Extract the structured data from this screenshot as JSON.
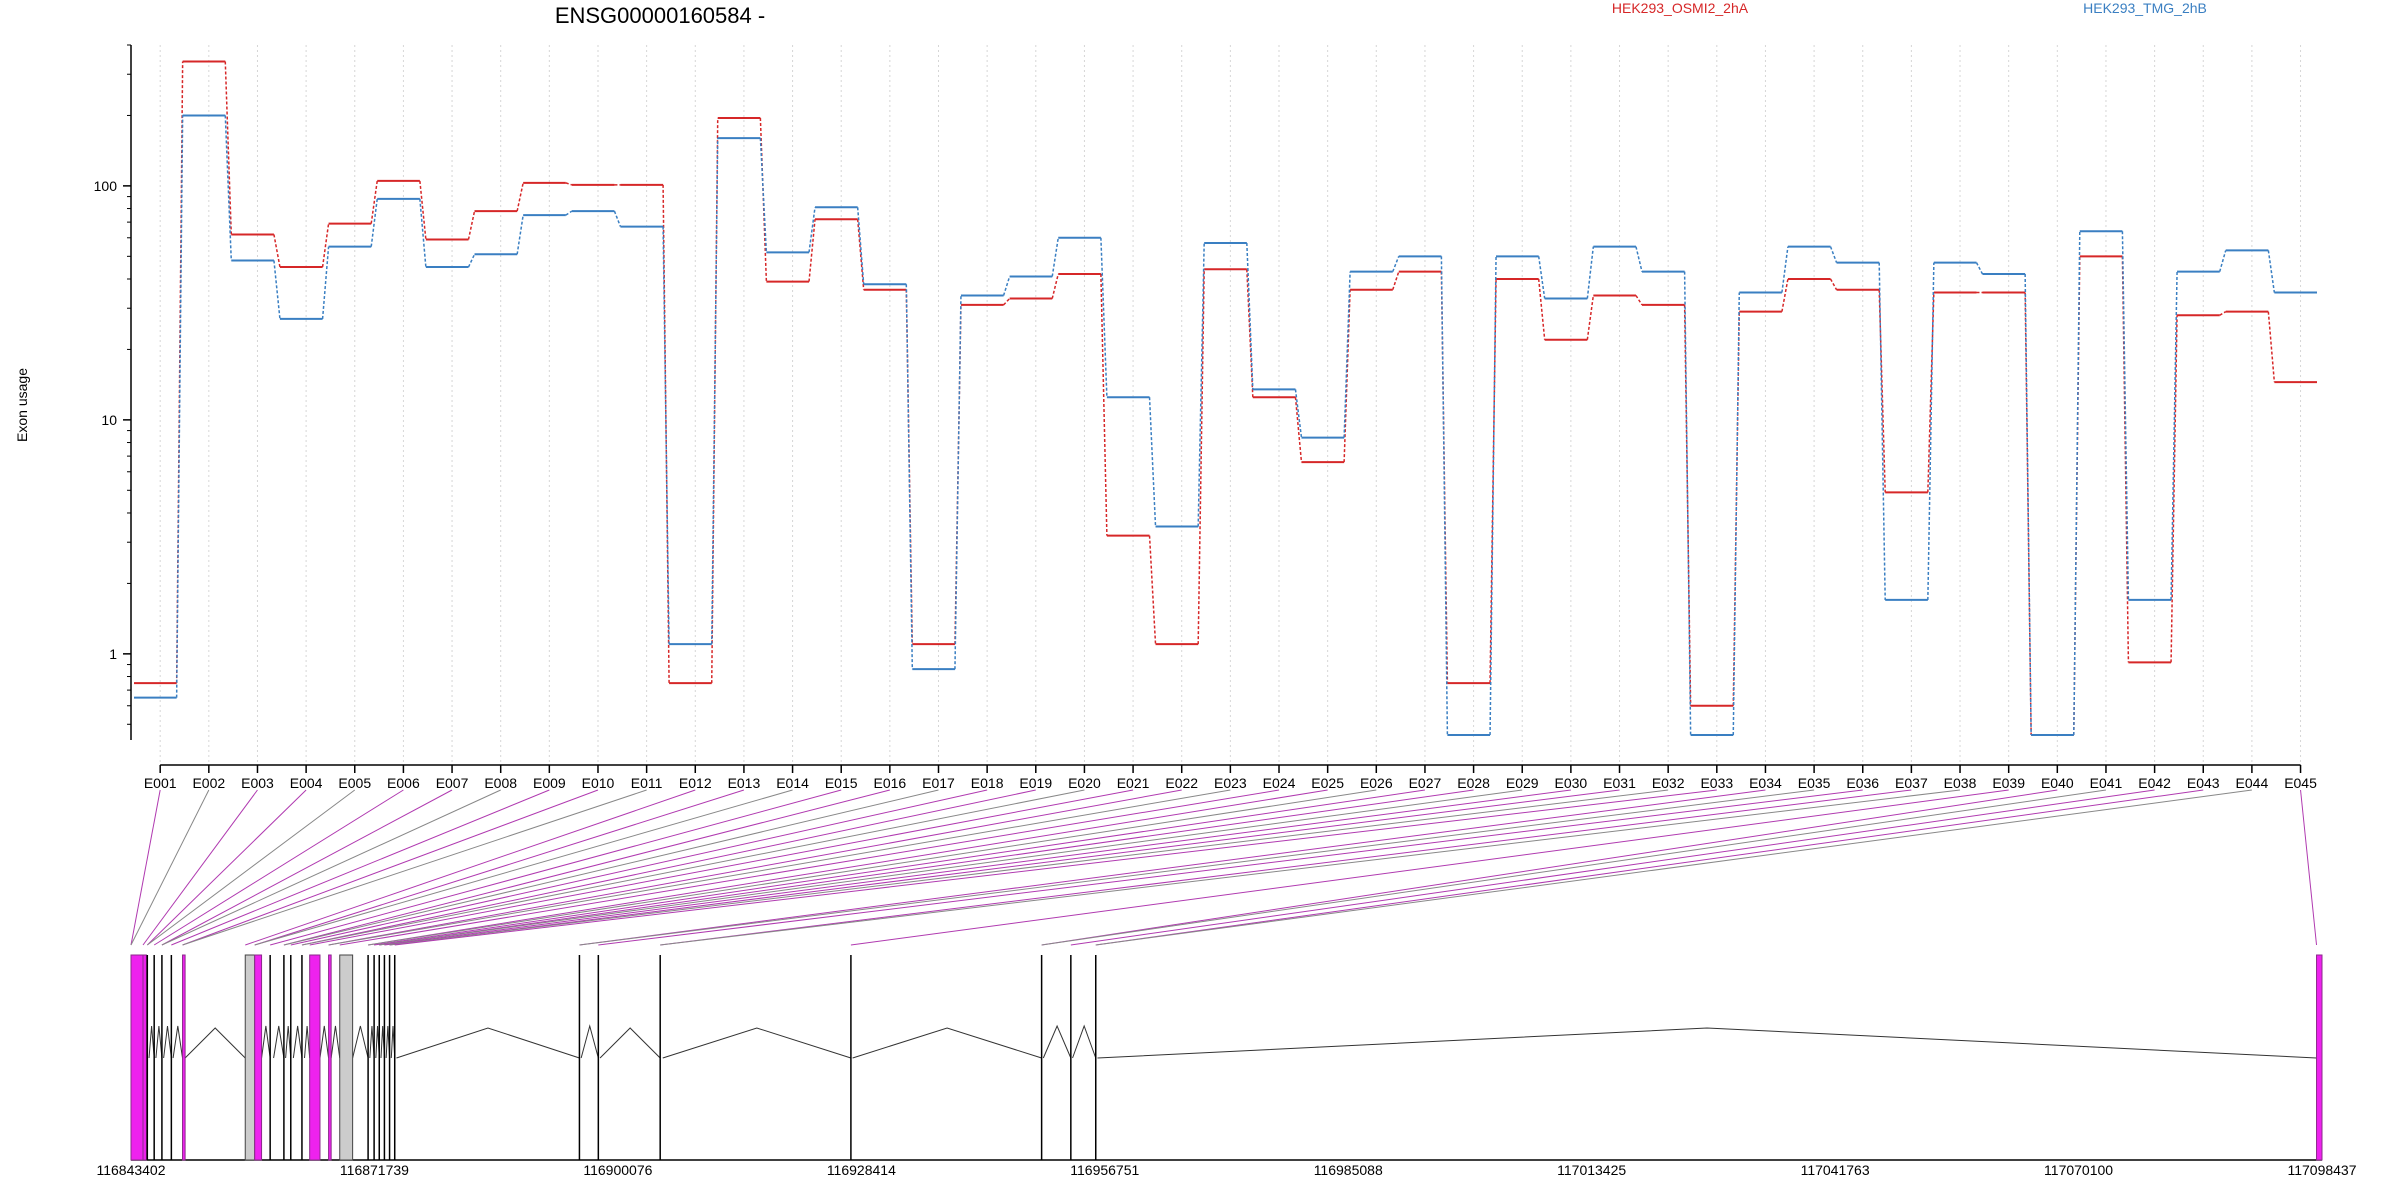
{
  "chart_data": {
    "type": "line",
    "title": "ENSG00000160584 -",
    "ylabel": "Exon usage",
    "xlabel": "",
    "yscale": "log",
    "ylim": [
      0.45,
      400
    ],
    "yticks": [
      1,
      10,
      100
    ],
    "ytick_labels": [
      "1",
      "10",
      "100"
    ],
    "grid": "vertical dotted",
    "legend_position": "top",
    "categories": [
      "E001",
      "E002",
      "E003",
      "E004",
      "E005",
      "E006",
      "E007",
      "E008",
      "E009",
      "E010",
      "E011",
      "E012",
      "E013",
      "E014",
      "E015",
      "E016",
      "E017",
      "E018",
      "E019",
      "E020",
      "E021",
      "E022",
      "E023",
      "E024",
      "E025",
      "E026",
      "E027",
      "E028",
      "E029",
      "E030",
      "E031",
      "E032",
      "E033",
      "E034",
      "E035",
      "E036",
      "E037",
      "E038",
      "E039",
      "E040",
      "E041",
      "E042",
      "E043",
      "E044",
      "E045"
    ],
    "series": [
      {
        "name": "HEK293_OSMI2_2hA",
        "color": "#d62728",
        "values": [
          0.75,
          340,
          62,
          45,
          69,
          105,
          59,
          78,
          103,
          101,
          101,
          0.75,
          195,
          39,
          72,
          36,
          1.1,
          31,
          33,
          42,
          3.2,
          1.1,
          44,
          12.5,
          6.6,
          36,
          43,
          0.75,
          40,
          22,
          34,
          31,
          0.6,
          29,
          40,
          36,
          4.9,
          35,
          35,
          0.45,
          50,
          0.92,
          28,
          29,
          14.5
        ]
      },
      {
        "name": "HEK293_TMG_2hB",
        "color": "#3a7fc2",
        "values": [
          0.65,
          200,
          48,
          27,
          55,
          88,
          45,
          51,
          75,
          78,
          67,
          1.1,
          160,
          52,
          81,
          38,
          0.86,
          34,
          41,
          60,
          12.5,
          3.5,
          57,
          13.5,
          8.4,
          43,
          50,
          0.45,
          50,
          33,
          55,
          43,
          0.45,
          35,
          55,
          47,
          1.7,
          47,
          42,
          0.45,
          64,
          1.7,
          43,
          53,
          35
        ]
      }
    ],
    "gene_model": {
      "genomic_axis_ticks": [
        "116843402",
        "116871739",
        "116900076",
        "116928414",
        "116956751",
        "116985088",
        "117013425",
        "117041763",
        "117070100",
        "117098437"
      ],
      "genomic_range": [
        116843402,
        117098437
      ],
      "exon_fill_colors": {
        "highlighted": "#ee22ee",
        "tested": "#cccccc",
        "edge": "#8b2a8b"
      },
      "exons": [
        {
          "id": "E001",
          "start": 116843402,
          "end": 116844800,
          "kind": "highlighted"
        },
        {
          "id": "E002",
          "start": 116844800,
          "end": 116845200,
          "kind": "highlighted"
        },
        {
          "id": "E003",
          "start": 116845300,
          "end": 116845500,
          "kind": "line"
        },
        {
          "id": "E004",
          "start": 116846100,
          "end": 116846300,
          "kind": "line"
        },
        {
          "id": "E005",
          "start": 116847000,
          "end": 116847200,
          "kind": "line"
        },
        {
          "id": "E006",
          "start": 116848100,
          "end": 116848300,
          "kind": "line"
        },
        {
          "id": "E007",
          "start": 116849400,
          "end": 116849700,
          "kind": "highlighted"
        },
        {
          "id": "E008",
          "start": 116856700,
          "end": 116857800,
          "kind": "tested"
        },
        {
          "id": "E009",
          "start": 116857800,
          "end": 116858600,
          "kind": "highlighted"
        },
        {
          "id": "E010",
          "start": 116859600,
          "end": 116860000,
          "kind": "line"
        },
        {
          "id": "E011",
          "start": 116861200,
          "end": 116861400,
          "kind": "line"
        },
        {
          "id": "E012",
          "start": 116862000,
          "end": 116862300,
          "kind": "line"
        },
        {
          "id": "E013",
          "start": 116863300,
          "end": 116863600,
          "kind": "line"
        },
        {
          "id": "E014",
          "start": 116864200,
          "end": 116865400,
          "kind": "highlighted"
        },
        {
          "id": "E015",
          "start": 116866400,
          "end": 116866700,
          "kind": "highlighted"
        },
        {
          "id": "E016",
          "start": 116867700,
          "end": 116869200,
          "kind": "tested"
        },
        {
          "id": "E017",
          "start": 116871000,
          "end": 116871200,
          "kind": "line"
        },
        {
          "id": "E018",
          "start": 116871700,
          "end": 116871900,
          "kind": "line"
        },
        {
          "id": "E019",
          "start": 116872300,
          "end": 116872500,
          "kind": "line"
        },
        {
          "id": "E020",
          "start": 116872900,
          "end": 116873100,
          "kind": "line"
        },
        {
          "id": "E021",
          "start": 116873500,
          "end": 116873700,
          "kind": "line"
        },
        {
          "id": "E022",
          "start": 116874100,
          "end": 116874300,
          "kind": "line"
        },
        {
          "id": "E023",
          "start": 116895600,
          "end": 116895800,
          "kind": "line"
        },
        {
          "id": "E024",
          "start": 116897800,
          "end": 116898000,
          "kind": "line"
        },
        {
          "id": "E025",
          "start": 116905000,
          "end": 116905300,
          "kind": "line"
        },
        {
          "id": "E026",
          "start": 116927200,
          "end": 116927400,
          "kind": "line"
        },
        {
          "id": "E027",
          "start": 116949400,
          "end": 116949600,
          "kind": "line"
        },
        {
          "id": "E028",
          "start": 116952800,
          "end": 116953000,
          "kind": "line"
        },
        {
          "id": "E029",
          "start": 116955700,
          "end": 116955900,
          "kind": "line"
        },
        {
          "id": "E030",
          "start": 117097800,
          "end": 117098437,
          "kind": "highlighted"
        }
      ]
    }
  }
}
